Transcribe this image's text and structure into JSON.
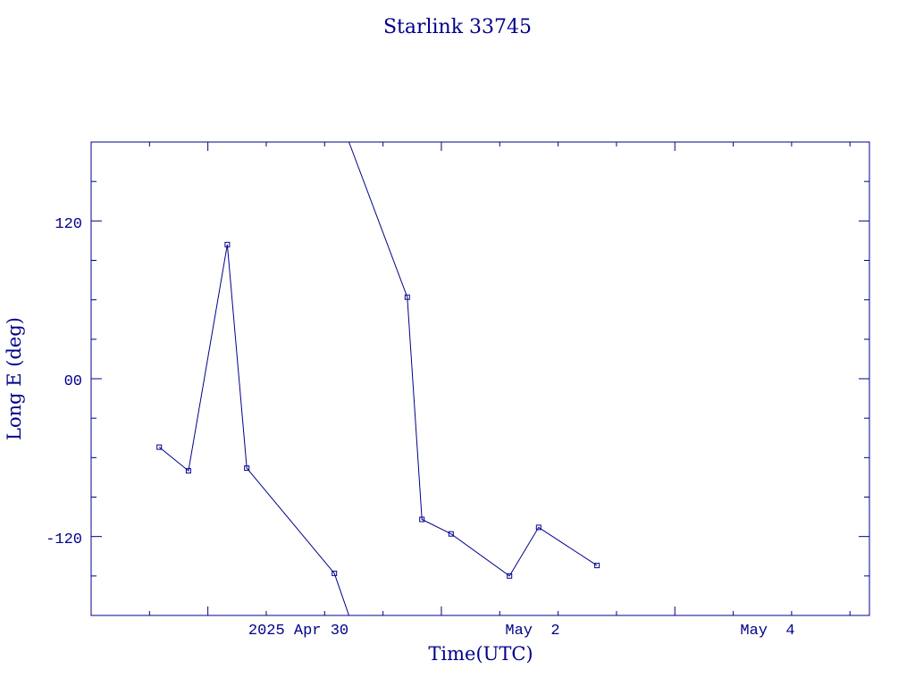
{
  "chart_data": {
    "type": "line",
    "title": "Starlink 33745",
    "xlabel": "Time(UTC)",
    "ylabel": "Long E (deg)",
    "x_ticks": [
      "2025 Apr 30",
      "May  2",
      "May  4"
    ],
    "y_ticks": [
      "120",
      "00",
      "-120"
    ],
    "xlim": [
      "2025-04-29 00:00",
      "2025-05-05 16:00"
    ],
    "ylim": [
      -180,
      180
    ],
    "grid": false,
    "legend": "none",
    "series": [
      {
        "points": [
          {
            "x": "2025-04-29 14:00",
            "y": -52
          },
          {
            "x": "2025-04-29 20:00",
            "y": -70
          },
          {
            "x": "2025-04-30 04:00",
            "y": 102
          },
          {
            "x": "2025-04-30 08:00",
            "y": -68
          },
          {
            "x": "2025-05-01 02:00",
            "y": -148
          },
          {
            "x": "2025-05-01 05:00",
            "y": -180,
            "interpolated": true
          }
        ]
      },
      {
        "points": [
          {
            "x": "2025-05-01 05:00",
            "y": 180,
            "interpolated": true
          },
          {
            "x": "2025-05-01 17:00",
            "y": 62
          },
          {
            "x": "2025-05-01 20:00",
            "y": -107
          },
          {
            "x": "2025-05-02 02:00",
            "y": -118
          },
          {
            "x": "2025-05-02 14:00",
            "y": -150
          },
          {
            "x": "2025-05-02 20:00",
            "y": -113
          },
          {
            "x": "2025-05-03 08:00",
            "y": -142
          }
        ]
      }
    ],
    "colors": {
      "foreground": "#00008b",
      "background": "#ffffff"
    }
  }
}
